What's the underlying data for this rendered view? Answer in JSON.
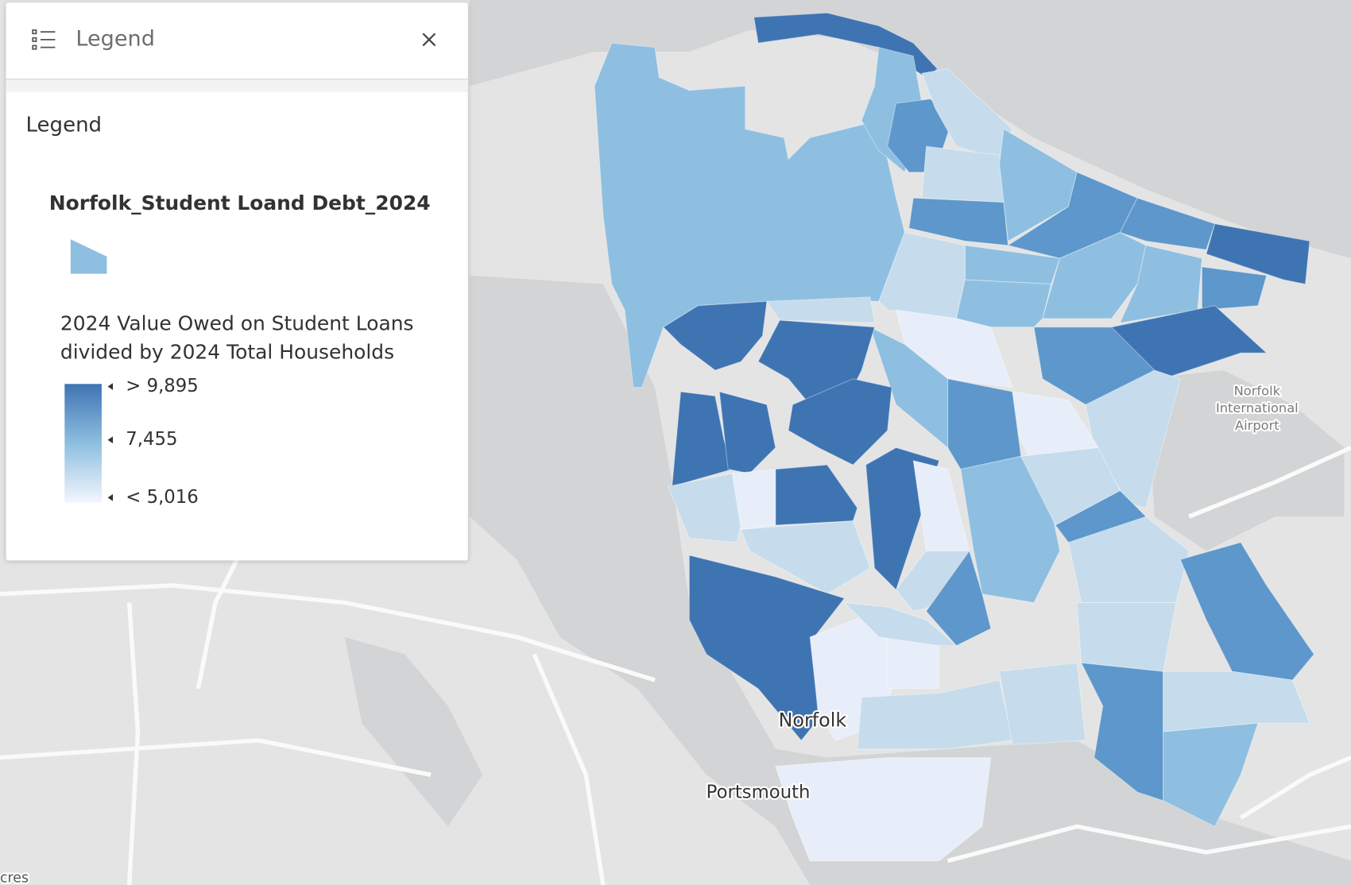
{
  "legend_panel": {
    "header_title": "Legend",
    "section_title": "Legend",
    "layer_title": "Norfolk_Student Loand Debt_2024",
    "field_description_lines": [
      "2024 Value Owed on Student Loans",
      "divided by 2024 Total Households"
    ],
    "ramp_labels": [
      "> 9,895",
      "7,455",
      "< 5,016"
    ]
  },
  "map_labels": {
    "cities": [
      "Norfolk",
      "Portsmouth"
    ],
    "airport_lines": [
      "Norfolk",
      "International",
      "Airport"
    ],
    "scale_fragment": "cres"
  }
}
